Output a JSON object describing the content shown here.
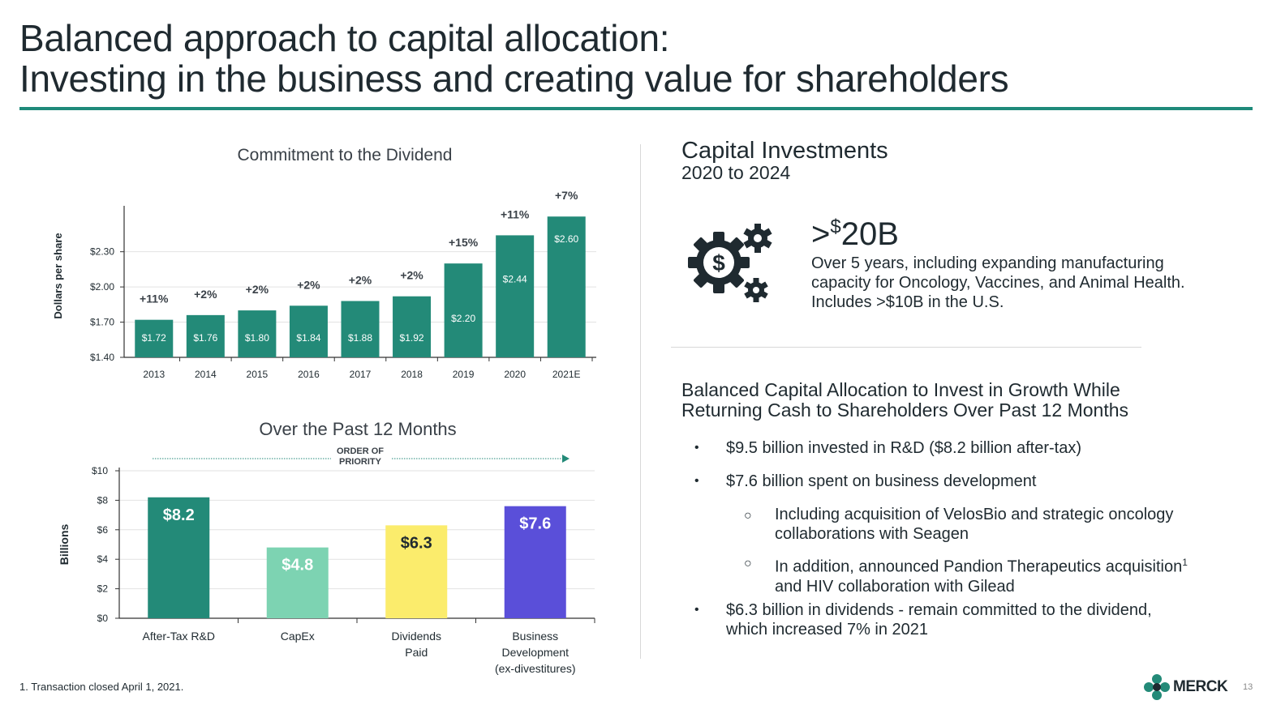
{
  "slide": {
    "title_line1": "Balanced approach to capital allocation:",
    "title_line2": "Investing in the business and creating value for shareholders",
    "footnote": "1.  Transaction closed April 1, 2021.",
    "page_number": "13",
    "logo_text": "MERCK"
  },
  "capital": {
    "title": "Capital Investments",
    "subtitle": "2020 to 2024",
    "big_prefix": ">",
    "big_currency": "$",
    "big_value": "20B",
    "description": "Over 5 years, including expanding manufacturing capacity for Oncology, Vaccines, and Animal Health. Includes >$10B in the U.S."
  },
  "balanced": {
    "title": "Balanced Capital Allocation to Invest in Growth While Returning Cash to Shareholders Over Past 12 Months",
    "bullet_char": "•",
    "sub_bullet_char": "○",
    "b1": "$9.5 billion invested in R&D ($8.2 billion after-tax)",
    "b2": "$7.6 billion spent on business development",
    "s1": "Including acquisition of VelosBio and strategic oncology collaborations with Seagen",
    "s2_part1": "In addition, announced Pandion Therapeutics acquisition",
    "s2_sup": "1",
    "s2_part2": " and HIV collaboration with Gilead",
    "b3": "$6.3 billion in dividends - remain committed to the dividend, which increased 7% in 2021"
  },
  "colors": {
    "teal": "#238a78",
    "mint": "#7dd3b2",
    "yellow": "#fbec6c",
    "purple": "#5a4fd9",
    "rule": "#1e8a7a"
  },
  "chart_data": [
    {
      "type": "bar",
      "title": "Commitment to the Dividend",
      "ylabel": "Dollars per share",
      "xlabel": "",
      "categories": [
        "2013",
        "2014",
        "2015",
        "2016",
        "2017",
        "2018",
        "2019",
        "2020",
        "2021E"
      ],
      "values": [
        1.72,
        1.76,
        1.8,
        1.84,
        1.88,
        1.92,
        2.2,
        2.44,
        2.6
      ],
      "value_labels": [
        "$1.72",
        "$1.76",
        "$1.80",
        "$1.84",
        "$1.88",
        "$1.92",
        "$2.20",
        "$2.44",
        "$2.60"
      ],
      "growth_labels": [
        "+11%",
        "+2%",
        "+2%",
        "+2%",
        "+2%",
        "+2%",
        "+15%",
        "+11%",
        "+7%"
      ],
      "yticks": [
        1.4,
        1.7,
        2.0,
        2.3
      ],
      "ytick_labels": [
        "$1.40",
        "$1.70",
        "$2.00",
        "$2.30"
      ],
      "ylim": [
        1.4,
        2.65
      ],
      "grid": true
    },
    {
      "type": "bar",
      "title": "Over the Past 12 Months",
      "ylabel": "Billions",
      "xlabel": "",
      "annotation": [
        "ORDER OF",
        "PRIORITY"
      ],
      "categories": [
        [
          "After-Tax R&D"
        ],
        [
          "CapEx"
        ],
        [
          "Dividends",
          "Paid"
        ],
        [
          "Business",
          "Development",
          "(ex-divestitures)"
        ]
      ],
      "values": [
        8.2,
        4.8,
        6.3,
        7.6
      ],
      "value_labels": [
        "$8.2",
        "$4.8",
        "$6.3",
        "$7.6"
      ],
      "bar_colors": [
        "#238a78",
        "#7dd3b2",
        "#fbec6c",
        "#5a4fd9"
      ],
      "label_colors": [
        "#ffffff",
        "#ffffff",
        "#1f2a30",
        "#ffffff"
      ],
      "yticks": [
        0,
        2,
        4,
        6,
        8,
        10
      ],
      "ytick_labels": [
        "$0",
        "$2",
        "$4",
        "$6",
        "$8",
        "$10"
      ],
      "ylim": [
        0,
        10
      ],
      "grid": true
    }
  ]
}
